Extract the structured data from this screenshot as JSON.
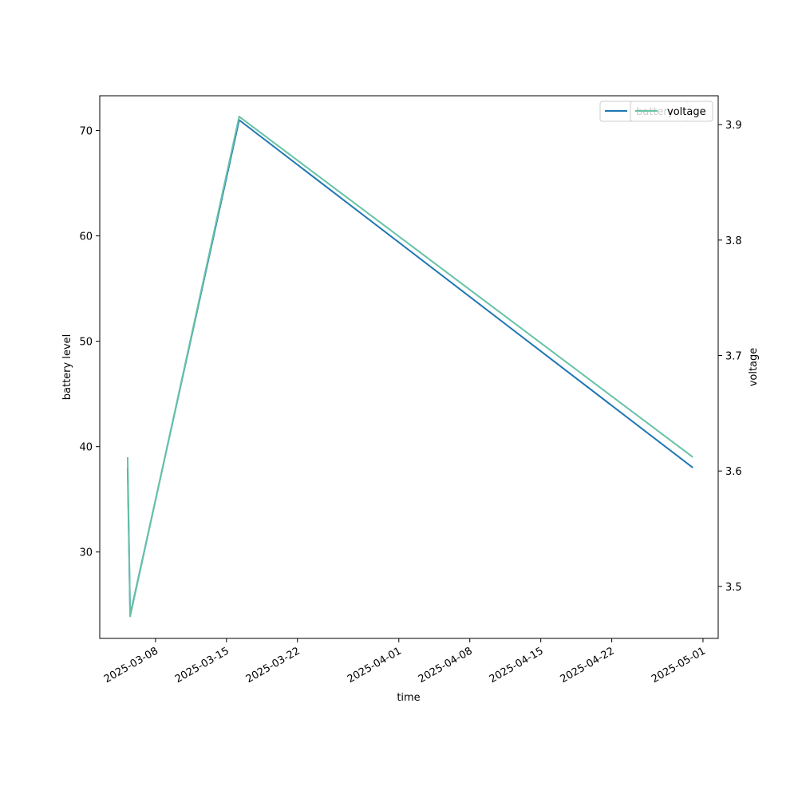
{
  "chart_data": {
    "type": "line",
    "xlabel": "time",
    "ylabel_left": "battery level",
    "ylabel_right": "voltage",
    "x_ticks": [
      "2025-03-08",
      "2025-03-15",
      "2025-03-22",
      "2025-04-01",
      "2025-04-08",
      "2025-04-15",
      "2025-04-22",
      "2025-05-01"
    ],
    "y_left_ticks": [
      30,
      40,
      50,
      60,
      70
    ],
    "y_right_ticks": [
      3.5,
      3.6,
      3.7,
      3.8,
      3.9
    ],
    "y_left_lim": [
      21.8,
      73.3
    ],
    "y_right_lim": [
      3.455,
      3.925
    ],
    "x_lim": [
      "2025-03-02T12:00",
      "2025-05-02T12:00"
    ],
    "grid": false,
    "series": [
      {
        "name": "battery",
        "axis": "left",
        "color": "#1f77b4",
        "x": [
          "2025-03-05T06:00",
          "2025-03-05T12:00",
          "2025-03-16T06:00",
          "2025-04-30T00:00"
        ],
        "values": [
          38,
          24,
          71,
          38
        ]
      },
      {
        "name": "voltage",
        "axis": "right",
        "color": "#66c2a5",
        "x": [
          "2025-03-05T06:00",
          "2025-03-05T12:00",
          "2025-03-16T06:00",
          "2025-04-30T00:00"
        ],
        "values": [
          3.612,
          3.474,
          3.907,
          3.612
        ]
      }
    ],
    "legend_left": {
      "label": "battery",
      "color": "#1f77b4"
    },
    "legend_right": {
      "label": "voltage",
      "color": "#66c2a5"
    },
    "legend_position": "top-right"
  }
}
